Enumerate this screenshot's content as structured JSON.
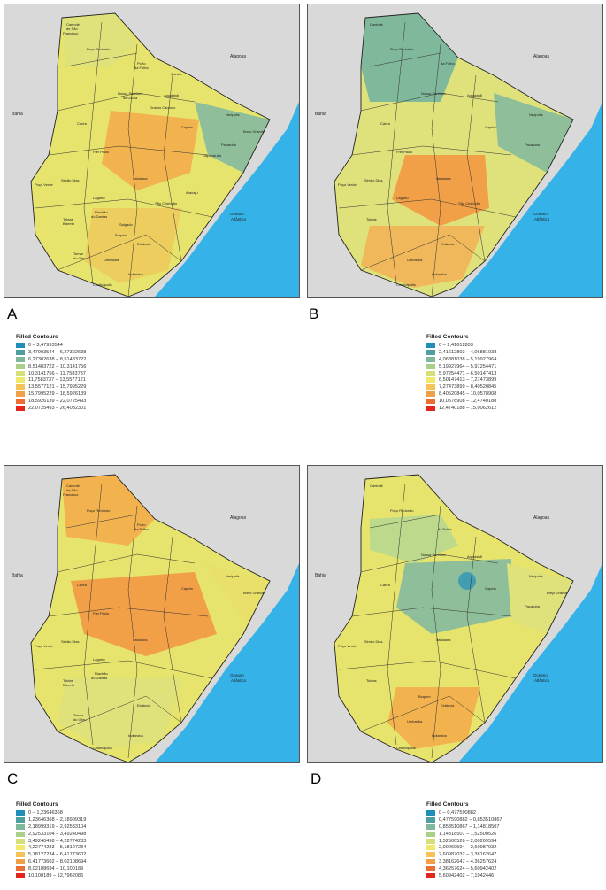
{
  "panels": [
    {
      "letter": "A",
      "legend": {
        "title": "Filled Contours",
        "items": [
          {
            "label": "0 – 3,47993544",
            "color": "#1f8fb8"
          },
          {
            "label": "3,47993544 – 6,27302638",
            "color": "#4f9fa0"
          },
          {
            "label": "6,27302638 – 8,51483722",
            "color": "#7fb89a"
          },
          {
            "label": "8,51483722 – 10,3141756",
            "color": "#a9cf88"
          },
          {
            "label": "10,3141756 – 11,7583737",
            "color": "#d6e07a"
          },
          {
            "label": "11,7583737 – 13,5577121",
            "color": "#f0ea6a"
          },
          {
            "label": "13,5577121 – 15,7995229",
            "color": "#f5c35a"
          },
          {
            "label": "15,7995229 – 18,5926139",
            "color": "#f2a048"
          },
          {
            "label": "18,5926139 – 22,0725493",
            "color": "#ec6e30"
          },
          {
            "label": "22,0725493 – 26,4082301",
            "color": "#e3261b"
          }
        ]
      },
      "fills": {
        "base": "#e6e46c",
        "north": "#dfe27a",
        "center": "#f2b24e",
        "east": "#8fbf9a",
        "south": "#eccd5e"
      }
    },
    {
      "letter": "B",
      "legend": {
        "title": "Filled Contours",
        "items": [
          {
            "label": "0 – 2,41612803",
            "color": "#1f8fb8"
          },
          {
            "label": "2,41612803 – 4,06881038",
            "color": "#4f9fa0"
          },
          {
            "label": "4,06881038 – 5,19927964",
            "color": "#7fb89a"
          },
          {
            "label": "5,19927964 – 5,97254471",
            "color": "#a9cf88"
          },
          {
            "label": "5,97254471 – 6,50147413",
            "color": "#d6e07a"
          },
          {
            "label": "6,50147413 – 7,27473899",
            "color": "#f0ea6a"
          },
          {
            "label": "7,27473899 – 8,40520845",
            "color": "#f5c35a"
          },
          {
            "label": "8,40520845 – 10,0578908",
            "color": "#f2a048"
          },
          {
            "label": "10,0578908 – 12,4740188",
            "color": "#ec6e30"
          },
          {
            "label": "12,4740188 – 15,0062612",
            "color": "#e3261b"
          }
        ]
      },
      "fills": {
        "base": "#dfe27a",
        "north": "#7fb89a",
        "center": "#f2a048",
        "east": "#8fbf9a",
        "south": "#f0b85a"
      }
    },
    {
      "letter": "C",
      "legend": {
        "title": "Filled Contours",
        "items": [
          {
            "label": "0 – 1,23646368",
            "color": "#1f8fb8"
          },
          {
            "label": "1,23646368 – 2,18999319",
            "color": "#4f9fa0"
          },
          {
            "label": "2,18999319 – 2,92533104",
            "color": "#7fb89a"
          },
          {
            "label": "2,92533104 – 3,49240498",
            "color": "#a9cf88"
          },
          {
            "label": "3,49240498 – 4,22774283",
            "color": "#d6e07a"
          },
          {
            "label": "4,22774283 – 5,18127234",
            "color": "#f0ea6a"
          },
          {
            "label": "5,18127234 – 6,41773602",
            "color": "#f5c35a"
          },
          {
            "label": "6,41773602 – 8,02108694",
            "color": "#f2a048"
          },
          {
            "label": "8,02108694 – 10,100189",
            "color": "#ec6e30"
          },
          {
            "label": "10,100189 – 12,7962086",
            "color": "#e3261b"
          }
        ]
      },
      "fills": {
        "base": "#e6e46c",
        "north": "#f2b24e",
        "center": "#f2a048",
        "east": "#e9e06a",
        "south": "#dfe27a"
      }
    },
    {
      "letter": "D",
      "legend": {
        "title": "Filled Contours",
        "items": [
          {
            "label": "0 – 0,477590882",
            "color": "#1f8fb8"
          },
          {
            "label": "0,477590882 – 0,853510867",
            "color": "#4f9fa0"
          },
          {
            "label": "0,853510867 – 1,14818507",
            "color": "#7fb89a"
          },
          {
            "label": "1,14818507 – 1,52500526",
            "color": "#a9cf88"
          },
          {
            "label": "1,52500526 – 2,00269594",
            "color": "#d6e07a"
          },
          {
            "label": "2,00269594 – 2,60987032",
            "color": "#f0ea6a"
          },
          {
            "label": "2,60987032 – 3,38162647",
            "color": "#f5c35a"
          },
          {
            "label": "3,38162647 – 4,36257624",
            "color": "#f2a048"
          },
          {
            "label": "4,36257624 – 5,60942402",
            "color": "#ec6e30"
          },
          {
            "label": "5,60942402 – 7,1942446",
            "color": "#e3261b"
          }
        ]
      },
      "fills": {
        "base": "#e6e46c",
        "north": "#bcd98c",
        "center": "#8fbf9a",
        "east": "#dfe27a",
        "south": "#f2b24e"
      }
    }
  ],
  "place_labels": {
    "bahia": "Bahia",
    "alagoas": "Alagoas",
    "oceano_1": "Oceano",
    "oceano_2": "Atlântico",
    "caninde_1": "Canindé",
    "caninde_2": "de São",
    "caninde_3": "Francisco",
    "poco_redondo": "Poço Redondo",
    "porto_1": "Porto",
    "porto_2": "da Folha",
    "itabaiana": "Itabaiana",
    "lagarto": "Lagarto",
    "estancia": "Estância",
    "aracaju": "Aracaju",
    "sao_cristovao": "São Cristóvão",
    "simao_dias": "Simão Dias",
    "poco_verde": "Poço Verde",
    "tobias_1": "Tobias",
    "tobias_2": "Barreto",
    "carira": "Carira",
    "frei_paulo": "Frei Paulo",
    "neopolis": "Neópolis",
    "pacatuba": "Pacatuba",
    "japaratuba": "Japaratuba",
    "gararu": "Gararu",
    "riachao_1": "Riachão",
    "riachao_2": "do Dantas",
    "boquim": "Boquim",
    "umbauba": "Umbaúba",
    "indiaroba": "Indiaroba",
    "crista": "Cristinápolis",
    "tomar_1": "Tomar",
    "tomar_2": "do Geru",
    "capela": "Capela",
    "brejo": "Brejo Grande",
    "salgado": "Salgado",
    "aquidaba": "Aquidabã",
    "gracho": "Gracho Cardoso",
    "nsgloria_1": "Nossa Senhora",
    "nsgloria_2": "da Glória"
  }
}
